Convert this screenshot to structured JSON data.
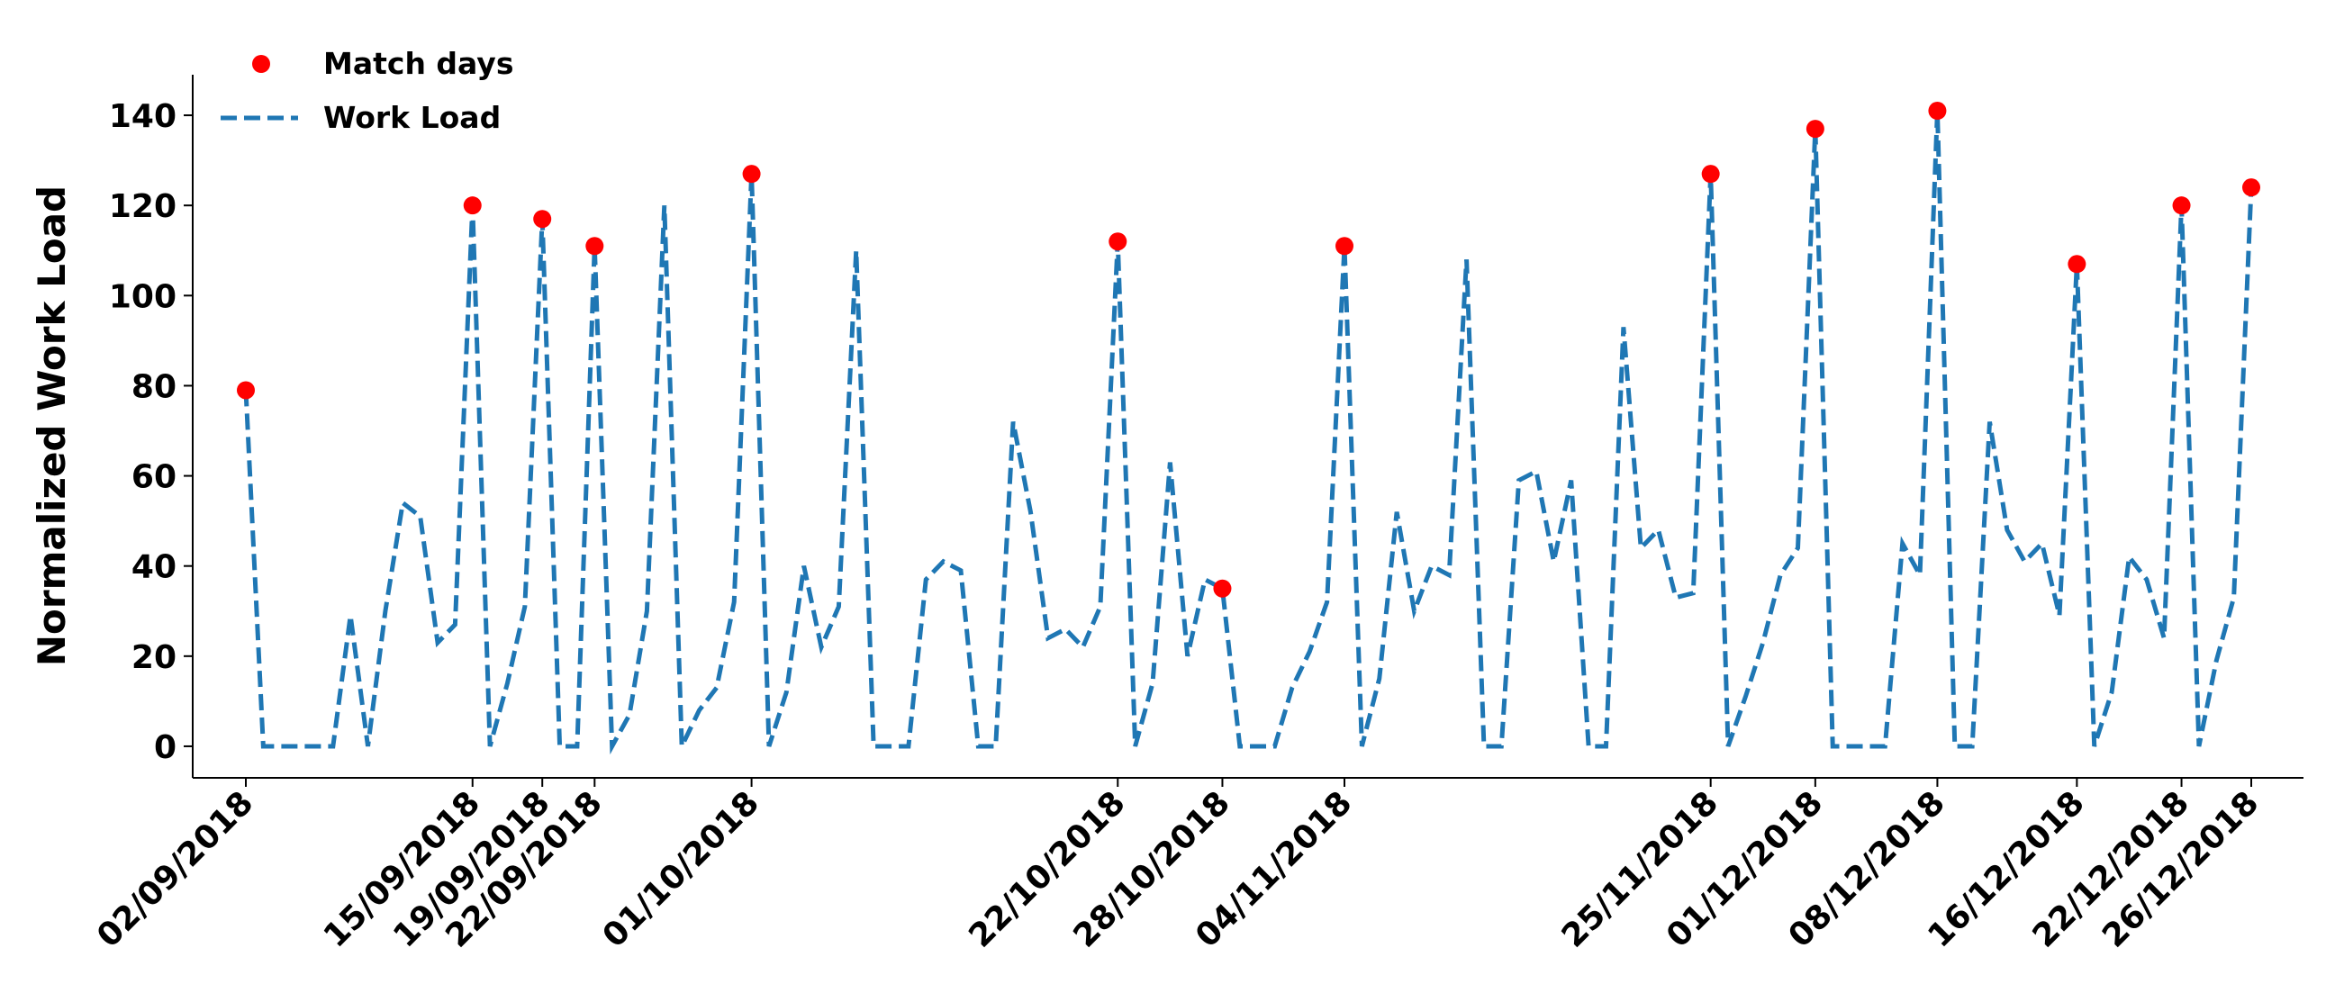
{
  "chart_data": {
    "type": "line",
    "ylabel": "Normalized Work Load",
    "x": [
      "02/09/2018",
      "03/09/2018",
      "04/09/2018",
      "05/09/2018",
      "06/09/2018",
      "07/09/2018",
      "08/09/2018",
      "09/09/2018",
      "10/09/2018",
      "11/09/2018",
      "12/09/2018",
      "13/09/2018",
      "14/09/2018",
      "15/09/2018",
      "16/09/2018",
      "17/09/2018",
      "18/09/2018",
      "19/09/2018",
      "20/09/2018",
      "21/09/2018",
      "22/09/2018",
      "23/09/2018",
      "24/09/2018",
      "25/09/2018",
      "26/09/2018",
      "27/09/2018",
      "28/09/2018",
      "29/09/2018",
      "30/09/2018",
      "01/10/2018",
      "02/10/2018",
      "03/10/2018",
      "04/10/2018",
      "05/10/2018",
      "06/10/2018",
      "07/10/2018",
      "08/10/2018",
      "09/10/2018",
      "10/10/2018",
      "11/10/2018",
      "12/10/2018",
      "13/10/2018",
      "14/10/2018",
      "15/10/2018",
      "16/10/2018",
      "17/10/2018",
      "18/10/2018",
      "19/10/2018",
      "20/10/2018",
      "21/10/2018",
      "22/10/2018",
      "23/10/2018",
      "24/10/2018",
      "25/10/2018",
      "26/10/2018",
      "27/10/2018",
      "28/10/2018",
      "29/10/2018",
      "30/10/2018",
      "31/10/2018",
      "01/11/2018",
      "02/11/2018",
      "03/11/2018",
      "04/11/2018",
      "05/11/2018",
      "06/11/2018",
      "07/11/2018",
      "08/11/2018",
      "09/11/2018",
      "10/11/2018",
      "11/11/2018",
      "12/11/2018",
      "13/11/2018",
      "14/11/2018",
      "15/11/2018",
      "16/11/2018",
      "17/11/2018",
      "18/11/2018",
      "19/11/2018",
      "20/11/2018",
      "21/11/2018",
      "22/11/2018",
      "23/11/2018",
      "24/11/2018",
      "25/11/2018",
      "26/11/2018",
      "27/11/2018",
      "28/11/2018",
      "29/11/2018",
      "30/11/2018",
      "01/12/2018",
      "02/12/2018",
      "03/12/2018",
      "04/12/2018",
      "05/12/2018",
      "06/12/2018",
      "07/12/2018",
      "08/12/2018",
      "09/12/2018",
      "10/12/2018",
      "11/12/2018",
      "12/12/2018",
      "13/12/2018",
      "14/12/2018",
      "15/12/2018",
      "16/12/2018",
      "17/12/2018",
      "18/12/2018",
      "19/12/2018",
      "20/12/2018",
      "21/12/2018",
      "22/12/2018",
      "23/12/2018",
      "24/12/2018",
      "25/12/2018",
      "26/12/2018"
    ],
    "series": [
      {
        "name": "Match days",
        "type": "scatter",
        "color": "#ff0000",
        "x": [
          "02/09/2018",
          "15/09/2018",
          "19/09/2018",
          "22/09/2018",
          "01/10/2018",
          "22/10/2018",
          "28/10/2018",
          "04/11/2018",
          "25/11/2018",
          "01/12/2018",
          "08/12/2018",
          "16/12/2018",
          "22/12/2018",
          "26/12/2018"
        ],
        "values": [
          79,
          120,
          117,
          111,
          127,
          112,
          35,
          111,
          127,
          137,
          141,
          107,
          120,
          124
        ]
      },
      {
        "name": "Work Load",
        "type": "line",
        "color": "#1f77b4",
        "dashed": true,
        "values": [
          79,
          0,
          0,
          0,
          0,
          0,
          29,
          0,
          30,
          54,
          51,
          23,
          27,
          120,
          0,
          14,
          31,
          117,
          0,
          0,
          111,
          0,
          7,
          30,
          120,
          0,
          8,
          13,
          32,
          127,
          0,
          12,
          40,
          22,
          31,
          110,
          0,
          0,
          0,
          37,
          41,
          39,
          0,
          0,
          72,
          52,
          24,
          26,
          22,
          31,
          112,
          0,
          14,
          63,
          20,
          37,
          35,
          0,
          0,
          0,
          13,
          21,
          32,
          111,
          0,
          15,
          52,
          30,
          40,
          38,
          108,
          0,
          0,
          59,
          61,
          41,
          59,
          0,
          0,
          93,
          44,
          48,
          33,
          34,
          127,
          0,
          11,
          23,
          38,
          44,
          137,
          0,
          0,
          0,
          0,
          45,
          38,
          141,
          0,
          0,
          72,
          48,
          41,
          45,
          29,
          107,
          0,
          12,
          42,
          37,
          24,
          120,
          0,
          19,
          33,
          124
        ]
      }
    ],
    "xticks": [
      "02/09/2018",
      "15/09/2018",
      "19/09/2018",
      "22/09/2018",
      "01/10/2018",
      "22/10/2018",
      "28/10/2018",
      "04/11/2018",
      "25/11/2018",
      "01/12/2018",
      "08/12/2018",
      "16/12/2018",
      "22/12/2018",
      "26/12/2018"
    ],
    "ylim": [
      -7,
      149
    ],
    "yticks": [
      0,
      20,
      40,
      60,
      80,
      100,
      120,
      140
    ],
    "grid": false,
    "legend": "upper left"
  }
}
